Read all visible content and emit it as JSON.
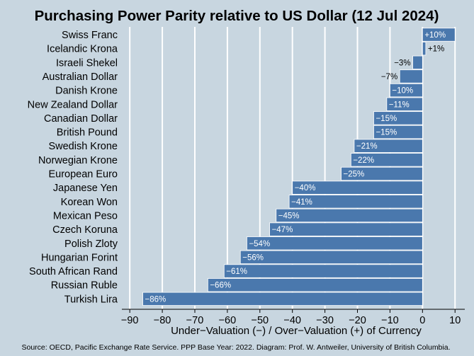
{
  "chart_data": {
    "type": "bar",
    "orientation": "horizontal",
    "title": "Purchasing Power Parity relative to US Dollar (12 Jul 2024)",
    "xlabel": "Under−Valuation (−) / Over−Valuation (+) of Currency",
    "ylabel": "",
    "xlim": [
      -92,
      13
    ],
    "xticks": [
      -90,
      -80,
      -70,
      -60,
      -50,
      -40,
      -30,
      -20,
      -10,
      0,
      10
    ],
    "xtick_labels": [
      "−90",
      "−80",
      "−70",
      "−60",
      "−50",
      "−40",
      "−30",
      "−20",
      "−10",
      "0",
      "10"
    ],
    "grid": "vertical",
    "categories": [
      "Swiss Franc",
      "Icelandic Krona",
      "Israeli Shekel",
      "Australian Dollar",
      "Danish Krone",
      "New Zealand Dollar",
      "Canadian Dollar",
      "British Pound",
      "Swedish Krone",
      "Norwegian Krone",
      "European Euro",
      "Japanese Yen",
      "Korean Won",
      "Mexican Peso",
      "Czech Koruna",
      "Polish Zloty",
      "Hungarian Forint",
      "South African Rand",
      "Russian Ruble",
      "Turkish Lira"
    ],
    "values": [
      10,
      1,
      -3,
      -7,
      -10,
      -11,
      -15,
      -15,
      -21,
      -22,
      -25,
      -40,
      -41,
      -45,
      -47,
      -54,
      -56,
      -61,
      -66,
      -86
    ],
    "data_labels": [
      "+10%",
      "+1%",
      "−3%",
      "−7%",
      "−10%",
      "−11%",
      "−15%",
      "−15%",
      "−21%",
      "−22%",
      "−25%",
      "−40%",
      "−41%",
      "−45%",
      "−47%",
      "−54%",
      "−56%",
      "−61%",
      "−66%",
      "−86%"
    ],
    "bar_color": "#4a78ad",
    "background_color": "#c8d6e0",
    "grid_color": "#ffffff",
    "source": "Source: OECD, Pacific Exchange Rate Service. PPP Base Year: 2022. Diagram: Prof. W. Antweiler, University of British Columbia."
  }
}
